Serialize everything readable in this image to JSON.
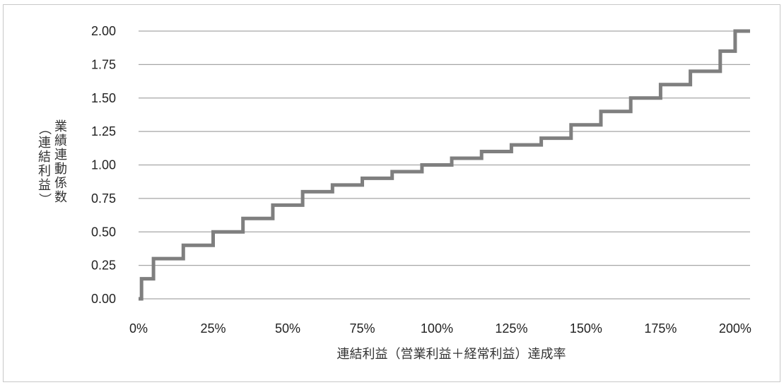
{
  "chart_data": {
    "type": "line",
    "step": true,
    "xlabel": "連結利益（営業利益＋経常利益）達成率",
    "ylabel": "業績連動係数（連結利益）",
    "ylabel_columns": [
      "業績連動係数",
      "（連結利益）"
    ],
    "xlim": [
      0,
      205
    ],
    "ylim": [
      0,
      2.0
    ],
    "x_ticks": [
      0,
      25,
      50,
      75,
      100,
      125,
      150,
      175,
      200
    ],
    "x_tick_labels": [
      "0%",
      "25%",
      "50%",
      "75%",
      "100%",
      "125%",
      "150%",
      "175%",
      "200%"
    ],
    "y_ticks": [
      0,
      0.25,
      0.5,
      0.75,
      1.0,
      1.25,
      1.5,
      1.75,
      2.0
    ],
    "y_tick_labels": [
      "0.00",
      "0.25",
      "0.50",
      "0.75",
      "1.00",
      "1.25",
      "1.50",
      "1.75",
      "2.00"
    ],
    "grid": "horizontal",
    "legend": "none",
    "line_color": "#7f7f7f",
    "grid_color": "#a6a6a6",
    "series": [
      {
        "x": [
          0,
          1,
          1,
          5,
          5,
          15,
          15,
          25,
          25,
          35,
          35,
          45,
          45,
          55,
          55,
          65,
          65,
          75,
          75,
          85,
          85,
          95,
          95,
          105,
          105,
          115,
          115,
          125,
          125,
          135,
          135,
          145,
          145,
          155,
          155,
          165,
          165,
          175,
          175,
          185,
          185,
          195,
          195,
          200,
          200,
          205
        ],
        "y": [
          0,
          0,
          0.15,
          0.15,
          0.3,
          0.3,
          0.4,
          0.4,
          0.5,
          0.5,
          0.6,
          0.6,
          0.7,
          0.7,
          0.8,
          0.8,
          0.85,
          0.85,
          0.9,
          0.9,
          0.95,
          0.95,
          1.0,
          1.0,
          1.05,
          1.05,
          1.1,
          1.1,
          1.15,
          1.15,
          1.2,
          1.2,
          1.3,
          1.3,
          1.4,
          1.4,
          1.5,
          1.5,
          1.6,
          1.6,
          1.7,
          1.7,
          1.85,
          1.85,
          2.0,
          2.0
        ]
      }
    ]
  }
}
